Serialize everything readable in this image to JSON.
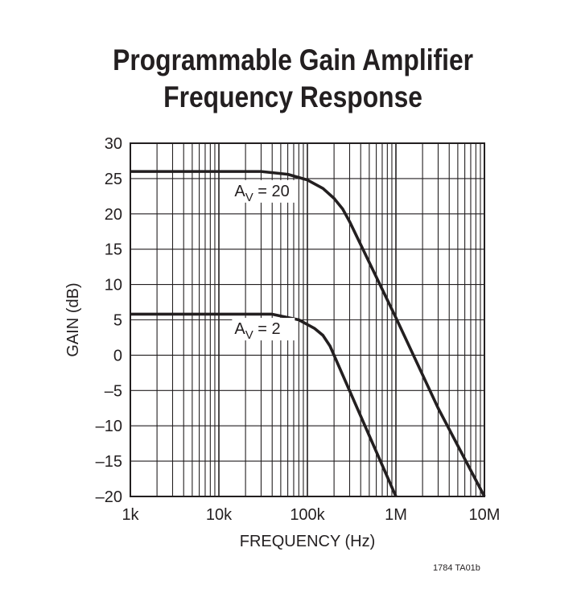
{
  "figure_id": "1784 TA01b",
  "chart_data": {
    "type": "line",
    "title": [
      "Programmable Gain Amplifier",
      "Frequency Response"
    ],
    "xlabel": "FREQUENCY (Hz)",
    "ylabel": "GAIN (dB)",
    "xscale": "log",
    "xlim": [
      1000,
      10000000
    ],
    "ylim": [
      -20,
      30
    ],
    "grid": true,
    "x_ticks": [
      {
        "value": 1000,
        "label": "1k"
      },
      {
        "value": 10000,
        "label": "10k"
      },
      {
        "value": 100000,
        "label": "100k"
      },
      {
        "value": 1000000,
        "label": "1M"
      },
      {
        "value": 10000000,
        "label": "10M"
      }
    ],
    "y_ticks": [
      {
        "value": 30,
        "label": "30"
      },
      {
        "value": 25,
        "label": "25"
      },
      {
        "value": 20,
        "label": "20"
      },
      {
        "value": 15,
        "label": "15"
      },
      {
        "value": 10,
        "label": "10"
      },
      {
        "value": 5,
        "label": "5"
      },
      {
        "value": 0,
        "label": "0"
      },
      {
        "value": -5,
        "label": "–5"
      },
      {
        "value": -10,
        "label": "–10"
      },
      {
        "value": -15,
        "label": "–15"
      },
      {
        "value": -20,
        "label": "–20"
      }
    ],
    "series": [
      {
        "label_main": "A",
        "label_sub": "V",
        "label_rest": " = 20",
        "label_at": {
          "x": 15000,
          "y": 22.5
        },
        "x": [
          1000,
          30000,
          60000,
          100000,
          150000,
          200000,
          250000,
          300000,
          1000000,
          3000000,
          10000000
        ],
        "y": [
          26,
          26,
          25.6,
          24.8,
          23.6,
          22.2,
          20.7,
          18.9,
          5.3,
          -7.5,
          -20
        ]
      },
      {
        "label_main": "A",
        "label_sub": "V",
        "label_rest": " = 2",
        "label_at": {
          "x": 15000,
          "y": 3.0
        },
        "x": [
          1000,
          40000,
          80000,
          120000,
          150000,
          180000,
          1000000
        ],
        "y": [
          5.8,
          5.8,
          5.0,
          3.8,
          2.8,
          1.3,
          -20
        ]
      }
    ]
  }
}
